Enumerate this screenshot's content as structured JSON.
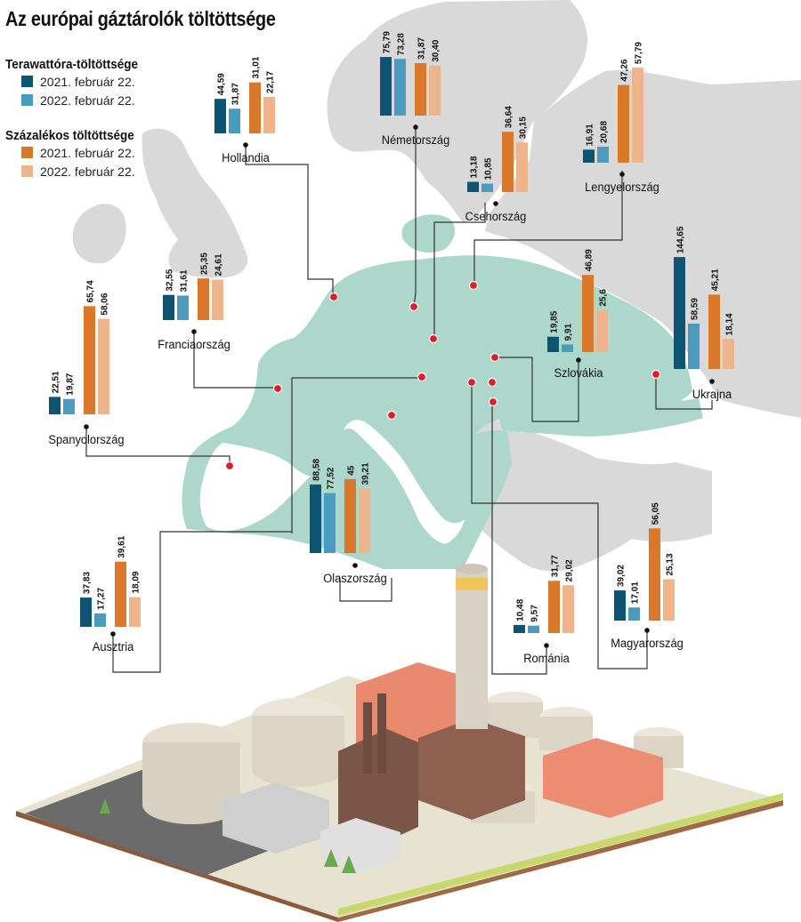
{
  "title": "Az európai gáztárolók töltöttsége",
  "legend": {
    "twh_heading": "Terawattóra-töltöttsége",
    "pct_heading": "Százalékos töltöttsége",
    "items": [
      {
        "label": "2021. február 22.",
        "color": "#0b5472"
      },
      {
        "label": "2022. február 22.",
        "color": "#4a9bbe"
      },
      {
        "label": "2021. február 22.",
        "color": "#d9772a"
      },
      {
        "label": "2022. február 22.",
        "color": "#eeb58d"
      }
    ]
  },
  "colors": {
    "twh_2021": "#0b5472",
    "twh_2022": "#4a9bbe",
    "pct_2021": "#d9772a",
    "pct_2022": "#eeb58d",
    "map_land": "#d9d9d9",
    "map_europe": "#aed7cc",
    "marker": "#e21c2a",
    "leader": "#333333"
  },
  "chart_data": {
    "type": "bar",
    "title": "Az európai gáztárolók töltöttsége",
    "series": [
      {
        "name": "Terawattóra-töltöttsége 2021. február 22.",
        "group": "twh",
        "key": "twh_2021"
      },
      {
        "name": "Terawattóra-töltöttsége 2022. február 22.",
        "group": "twh",
        "key": "twh_2022"
      },
      {
        "name": "Százalékos töltöttsége 2021. február 22.",
        "group": "pct",
        "key": "pct_2021"
      },
      {
        "name": "Százalékos töltöttsége 2022. február 22.",
        "group": "pct",
        "key": "pct_2022"
      }
    ],
    "countries": [
      {
        "name": "Hollandia",
        "twh_2021": "44,59",
        "twh_2022": "31,87",
        "pct_2021": "31,01",
        "pct_2022": "22,17"
      },
      {
        "name": "Németország",
        "twh_2021": "75,79",
        "twh_2022": "73,28",
        "pct_2021": "31,87",
        "pct_2022": "30,40"
      },
      {
        "name": "Csehország",
        "twh_2021": "13,18",
        "twh_2022": "10,85",
        "pct_2021": "36,64",
        "pct_2022": "30,15"
      },
      {
        "name": "Lengyelország",
        "twh_2021": "16,91",
        "twh_2022": "20,68",
        "pct_2021": "47,26",
        "pct_2022": "57,79"
      },
      {
        "name": "Franciaország",
        "twh_2021": "32,55",
        "twh_2022": "31,61",
        "pct_2021": "25,35",
        "pct_2022": "24,61"
      },
      {
        "name": "Szlovákia",
        "twh_2021": "19,85",
        "twh_2022": "9,91",
        "pct_2021": "46,89",
        "pct_2022": "25,6"
      },
      {
        "name": "Ukrajna",
        "twh_2021": "144,65",
        "twh_2022": "58,59",
        "pct_2021": "45,21",
        "pct_2022": "18,14"
      },
      {
        "name": "Spanyolország",
        "twh_2021": "22,51",
        "twh_2022": "19,87",
        "pct_2021": "65,74",
        "pct_2022": "58,06"
      },
      {
        "name": "Olaszország",
        "twh_2021": "88,58",
        "twh_2022": "77,52",
        "pct_2021": "45",
        "pct_2022": "39,21"
      },
      {
        "name": "Ausztria",
        "twh_2021": "37,83",
        "twh_2022": "17,27",
        "pct_2021": "39,61",
        "pct_2022": "18,09"
      },
      {
        "name": "Románia",
        "twh_2021": "10,48",
        "twh_2022": "9,57",
        "pct_2021": "31,77",
        "pct_2022": "29,02"
      },
      {
        "name": "Magyarország",
        "twh_2021": "39,02",
        "twh_2022": "17,01",
        "pct_2021": "56,05",
        "pct_2022": "25,13"
      }
    ]
  }
}
